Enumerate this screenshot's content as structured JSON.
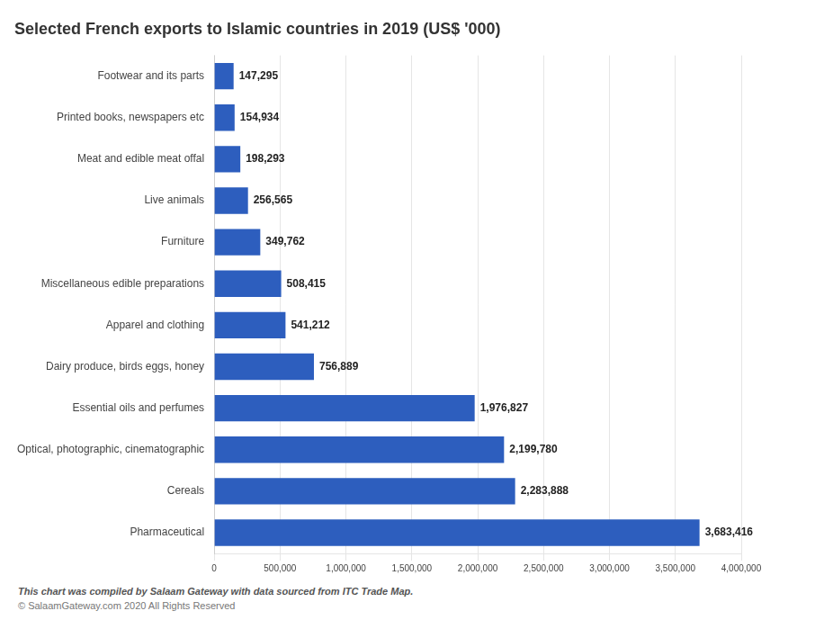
{
  "chart_data": {
    "type": "bar",
    "orientation": "horizontal",
    "title": "Selected French exports to Islamic countries in 2019 (US$ '000)",
    "categories": [
      "Footwear and its parts",
      "Printed books, newspapers etc",
      "Meat and edible meat offal",
      "Live animals",
      "Furniture",
      "Miscellaneous edible preparations",
      "Apparel and clothing",
      "Dairy produce, birds eggs, honey",
      "Essential oils and perfumes",
      "Optical, photographic, cinematographic",
      "Cereals",
      "Pharmaceutical"
    ],
    "values": [
      147295,
      154934,
      198293,
      256565,
      349762,
      508415,
      541212,
      756889,
      1976827,
      2199780,
      2283888,
      3683416
    ],
    "value_labels": [
      "147,295",
      "154,934",
      "198,293",
      "256,565",
      "349,762",
      "508,415",
      "541,212",
      "756,889",
      "1,976,827",
      "2,199,780",
      "2,283,888",
      "3,683,416"
    ],
    "data_labels": true,
    "color": "#2D5EBE",
    "xlim": [
      0,
      4000000
    ],
    "xticks": [
      0,
      {
        "value": 500000,
        "label": "500,000"
      },
      {
        "value": 1000000,
        "label": "1,000,000"
      },
      {
        "value": 1500000,
        "label": "1,500,000"
      },
      {
        "value": 2000000,
        "label": "2,000,000"
      },
      {
        "value": 2500000,
        "label": "2,500,000"
      },
      {
        "value": 3000000,
        "label": "3,000,000"
      },
      {
        "value": 3500000,
        "label": "3,500,000"
      },
      {
        "value": 4000000,
        "label": "4,000,000"
      }
    ],
    "grid": true,
    "annotations": [
      "This chart was compiled by Salaam Gateway with data sourced from ITC Trade Map.",
      "© SalaamGateway.com 2020 All Rights Reserved"
    ]
  }
}
